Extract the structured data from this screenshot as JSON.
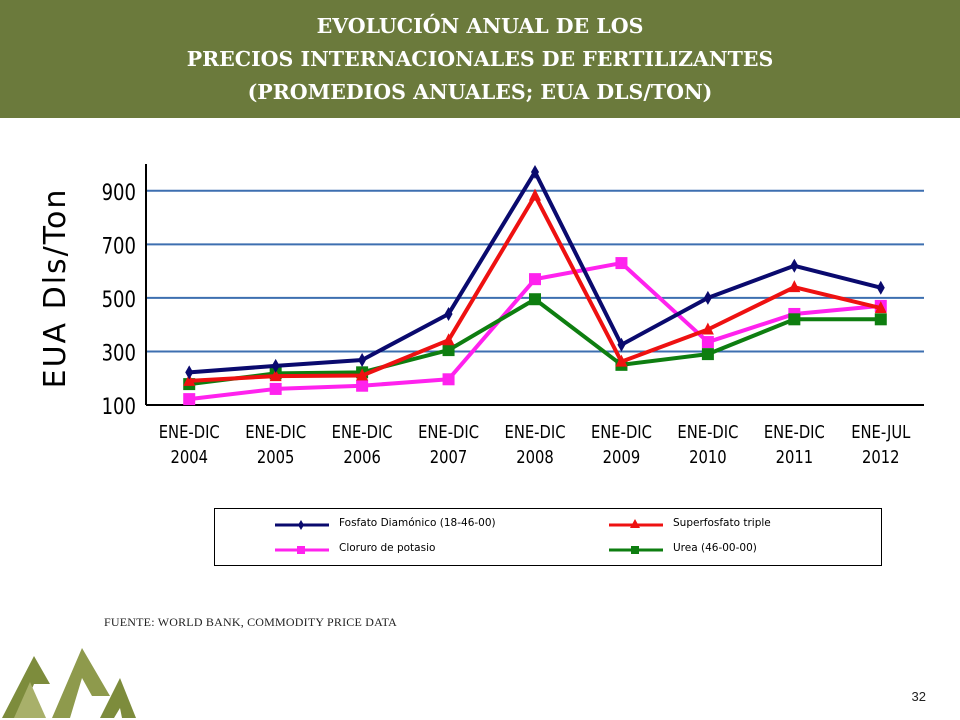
{
  "header": {
    "title_lines": [
      "EVOLUCIÓN ANUAL DE LOS",
      "PRECIOS INTERNACIONALES DE FERTILIZANTES",
      "(PROMEDIOS ANUALES; EUA DLS/TON)"
    ]
  },
  "chart_data": {
    "type": "line",
    "title": "",
    "xlabel": "",
    "ylabel": "EUA Dls/Ton",
    "categories": [
      "ENE-DIC\n2004",
      "ENE-DIC\n2005",
      "ENE-DIC\n2006",
      "ENE-DIC\n2007",
      "ENE-DIC\n2008",
      "ENE-DIC\n2009",
      "ENE-DIC\n2010",
      "ENE-DIC\n2011",
      "ENE-JUL\n2012"
    ],
    "ylim": [
      100,
      1000
    ],
    "yticks": [
      100,
      300,
      500,
      700,
      900
    ],
    "grid": "horizontal",
    "legend_position": "bottom",
    "series": [
      {
        "name": "Fosfato Diamónico (18-46-00)",
        "color": "#0a0a6e",
        "marker": "diamond",
        "values": [
          222,
          246,
          268,
          440,
          970,
          325,
          500,
          620,
          538
        ]
      },
      {
        "name": "Superfosfato triple",
        "color": "#ee1111",
        "marker": "triangle",
        "values": [
          190,
          208,
          210,
          342,
          882,
          262,
          382,
          540,
          462
        ]
      },
      {
        "name": "Cloruro de potasio",
        "color": "#ff22ee",
        "marker": "square",
        "values": [
          122,
          160,
          172,
          196,
          570,
          630,
          335,
          440,
          470
        ]
      },
      {
        "name": "Urea (46-00-00)",
        "color": "#0e7e10",
        "marker": "square",
        "values": [
          178,
          218,
          222,
          305,
          495,
          250,
          290,
          420,
          420
        ]
      }
    ]
  },
  "footer": {
    "source": "FUENTE: WORLD BANK, COMMODITY PRICE DATA",
    "page_number": "32"
  }
}
